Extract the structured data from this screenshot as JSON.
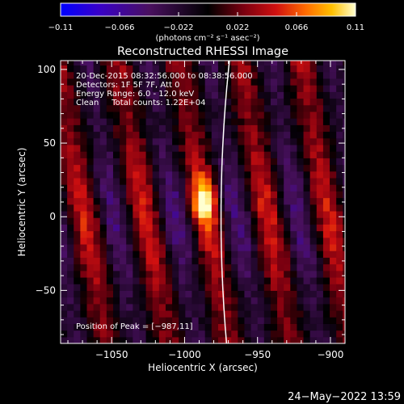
{
  "chart_data": {
    "type": "heatmap",
    "title": "Reconstructed RHESSI Image",
    "xlabel": "Heliocentric X (arcsec)",
    "ylabel": "Heliocentric Y (arcsec)",
    "xlim": [
      -1085,
      -890
    ],
    "ylim": [
      -86,
      106
    ],
    "x_ticks": [
      -1050,
      -1000,
      -950,
      -900
    ],
    "x_tick_labels": [
      "−1050",
      "−1000",
      "−950",
      "−900"
    ],
    "y_ticks": [
      -50,
      0,
      50,
      100
    ],
    "y_tick_labels": [
      "−50",
      "0",
      "50",
      "100"
    ],
    "colorbar": {
      "range": [
        -0.11,
        0.11
      ],
      "ticks": [
        -0.11,
        -0.066,
        -0.022,
        0.022,
        0.066,
        0.11
      ],
      "tick_labels": [
        "−0.11",
        "−0.066",
        "−0.022",
        "0.022",
        "0.066",
        "0.11"
      ],
      "label": "(photons cm⁻² s⁻¹ asec⁻²)",
      "colors": [
        "#0000ff",
        "#3800c8",
        "#4a1060",
        "#000000",
        "#7a0010",
        "#d01010",
        "#ff6a00",
        "#ffc000",
        "#ffffd0"
      ]
    },
    "annotations": [
      "20-Dec-2015 08:32:56.000 to 08:38:56.000",
      "Detectors: 1F 5F 7F, Att 0",
      "Energy Range: 6.0 - 12.0 keV",
      "Clean     Total counts: 1.22E+04"
    ],
    "peak_label": "Position of Peak = [−987,11]",
    "peak": {
      "x": -987,
      "y": 11
    },
    "limb_color": "#ffffff",
    "grid": false
  },
  "timestamp": "24−May−2022 13:59"
}
